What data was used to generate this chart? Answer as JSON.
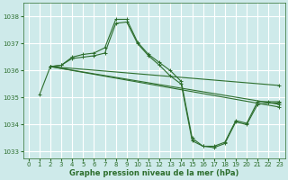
{
  "bg_color": "#ceeaea",
  "grid_color": "#ffffff",
  "line_color": "#2d6e2d",
  "xlabel": "Graphe pression niveau de la mer (hPa)",
  "ylim": [
    1032.75,
    1038.5
  ],
  "xlim": [
    -0.5,
    23.5
  ],
  "yticks": [
    1033,
    1034,
    1035,
    1036,
    1037,
    1038
  ],
  "xticks": [
    0,
    1,
    2,
    3,
    4,
    5,
    6,
    7,
    8,
    9,
    10,
    11,
    12,
    13,
    14,
    15,
    16,
    17,
    18,
    19,
    20,
    21,
    22,
    23
  ],
  "line1_x": [
    1,
    2,
    3,
    4,
    5,
    6,
    7,
    8,
    9,
    10,
    11,
    12,
    13,
    14,
    15,
    16,
    17,
    18,
    19,
    20,
    21,
    22,
    23
  ],
  "line1_y": [
    1035.1,
    1036.15,
    1036.2,
    1036.45,
    1036.5,
    1036.55,
    1036.65,
    1037.75,
    1037.8,
    1037.0,
    1036.55,
    1036.2,
    1035.8,
    1035.5,
    1033.4,
    1033.2,
    1033.2,
    1033.35,
    1034.15,
    1034.05,
    1034.85,
    1034.85,
    1034.85
  ],
  "line2_x": [
    2,
    3,
    4,
    5,
    6,
    7,
    8,
    9,
    10,
    11,
    12,
    13,
    14,
    15,
    16,
    17,
    18,
    19,
    20,
    21,
    22,
    23
  ],
  "line2_y": [
    1036.15,
    1036.2,
    1036.5,
    1036.6,
    1036.65,
    1036.85,
    1037.9,
    1037.9,
    1037.05,
    1036.6,
    1036.3,
    1036.0,
    1035.6,
    1033.5,
    1033.2,
    1033.15,
    1033.3,
    1034.1,
    1034.0,
    1034.75,
    1034.8,
    1034.8
  ],
  "line3_x": [
    2,
    23
  ],
  "line3_y": [
    1036.15,
    1035.45
  ],
  "line4_x": [
    2,
    23
  ],
  "line4_y": [
    1036.15,
    1034.75
  ],
  "line5_x": [
    2,
    23
  ],
  "line5_y": [
    1036.15,
    1034.65
  ]
}
